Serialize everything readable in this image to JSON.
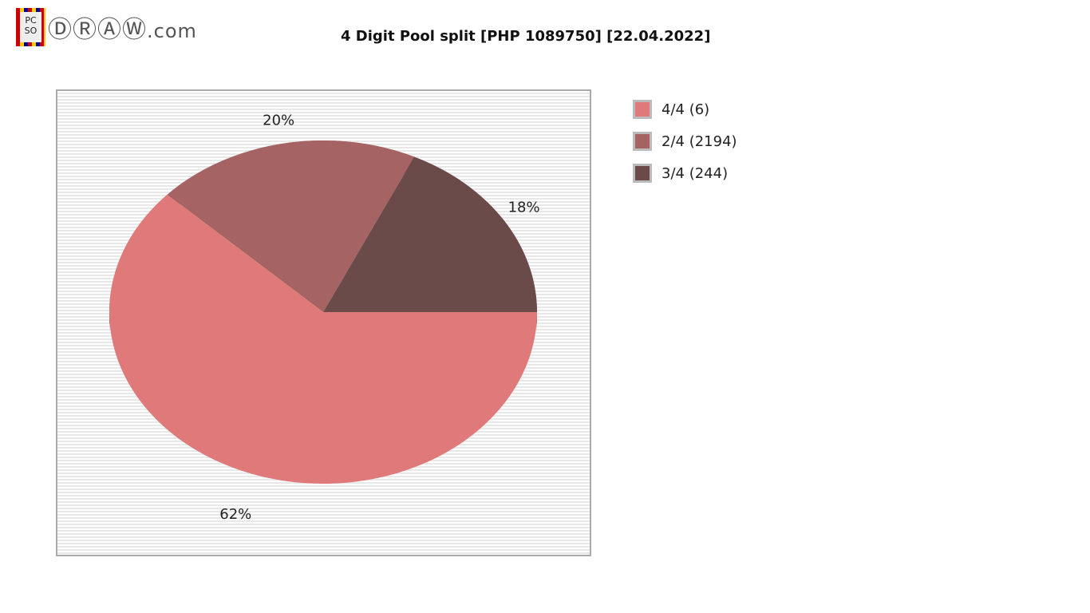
{
  "logo": {
    "text": "PCSO DRAW.com"
  },
  "title": "4 Digit Pool split [PHP 1089750] [22.04.2022]",
  "chart_data": {
    "type": "pie",
    "title": "4 Digit Pool split [PHP 1089750] [22.04.2022]",
    "style": "3d",
    "legend_position": "right",
    "slices": [
      {
        "label": "4/4 (6)",
        "value": 62,
        "data_label": "62%",
        "color": "#e07a7a"
      },
      {
        "label": "2/4 (2194)",
        "value": 20,
        "data_label": "20%",
        "color": "#a66363"
      },
      {
        "label": "3/4 (244)",
        "value": 18,
        "data_label": "18%",
        "color": "#6b4a4a"
      }
    ]
  }
}
